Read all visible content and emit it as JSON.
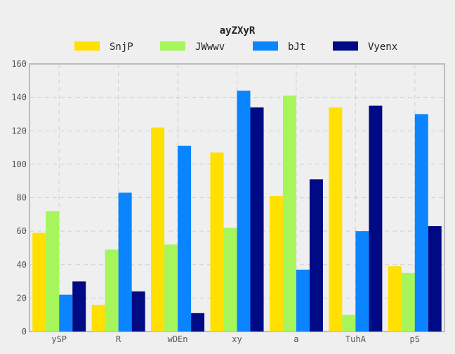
{
  "chart_data": {
    "type": "bar",
    "title": "ayZXyR",
    "xlabel": "",
    "ylabel": "",
    "categories": [
      "ySP",
      "R",
      "wDEn",
      "xy",
      "a",
      "TuhA",
      "pS"
    ],
    "series": [
      {
        "name": "SnjP",
        "color": "#ffe000",
        "values": [
          59,
          16,
          122,
          107,
          81,
          134,
          39
        ]
      },
      {
        "name": "JWwwv",
        "color": "#a6f55a",
        "values": [
          72,
          49,
          52,
          62,
          141,
          10,
          35
        ]
      },
      {
        "name": "bJt",
        "color": "#0a84ff",
        "values": [
          22,
          83,
          111,
          144,
          37,
          60,
          130
        ]
      },
      {
        "name": "Vyenx",
        "color": "#000a85",
        "values": [
          30,
          24,
          11,
          134,
          91,
          135,
          63
        ]
      }
    ],
    "ylim": [
      0,
      160
    ],
    "yticks": [
      0,
      20,
      40,
      60,
      80,
      100,
      120,
      140,
      160
    ],
    "grid": true,
    "legend": "top-center"
  }
}
